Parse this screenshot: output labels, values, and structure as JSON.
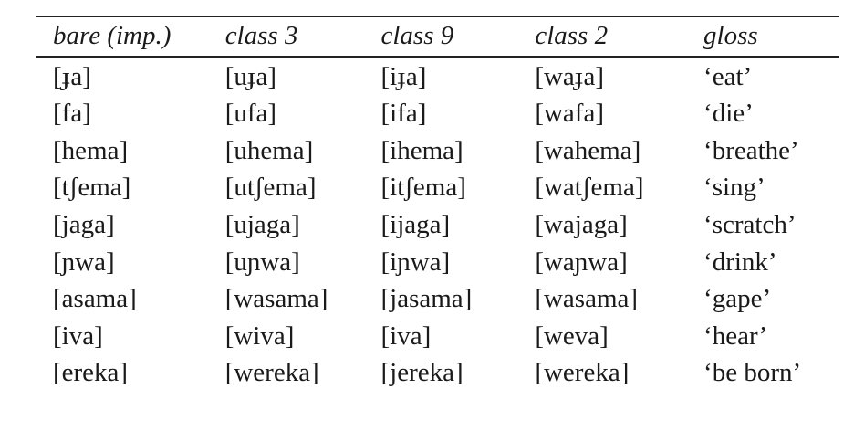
{
  "table": {
    "headers": [
      "bare (imp.)",
      "class 3",
      "class 9",
      "class 2",
      "gloss"
    ],
    "rows": [
      [
        "[ɟa]",
        "[uɟa]",
        "[iɟa]",
        "[waɟa]",
        "‘eat’"
      ],
      [
        "[fa]",
        "[ufa]",
        "[ifa]",
        "[wafa]",
        "‘die’"
      ],
      [
        "[hema]",
        "[uhema]",
        "[ihema]",
        "[wahema]",
        "‘breathe’"
      ],
      [
        "[tʃema]",
        "[utʃema]",
        "[itʃema]",
        "[watʃema]",
        "‘sing’"
      ],
      [
        "[jaga]",
        "[ujaga]",
        "[ijaga]",
        "[wajaga]",
        "‘scratch’"
      ],
      [
        "[ɲwa]",
        "[uɲwa]",
        "[iɲwa]",
        "[waɲwa]",
        "‘drink’"
      ],
      [
        "[asama]",
        "[wasama]",
        "[jasama]",
        "[wasama]",
        "‘gape’"
      ],
      [
        "[iva]",
        "[wiva]",
        "[iva]",
        "[weva]",
        "‘hear’"
      ],
      [
        "[ereka]",
        "[wereka]",
        "[jereka]",
        "[wereka]",
        "‘be born’"
      ]
    ]
  }
}
